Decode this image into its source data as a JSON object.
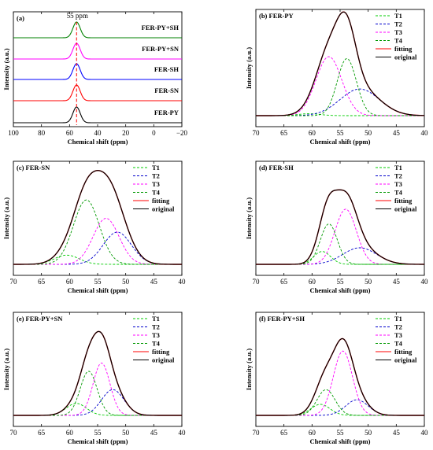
{
  "chart_data": [
    {
      "panel": "(a)",
      "type": "line",
      "xlabel": "Chemical shift (ppm)",
      "ylabel": "Intensity (a.u.)",
      "xlim": [
        100,
        -20
      ],
      "xticks": [
        100,
        80,
        60,
        40,
        20,
        0,
        -20
      ],
      "annotation": "55 ppm",
      "reference_line_x": 55,
      "stacked_series": [
        {
          "name": "FER-PY",
          "color": "#000000",
          "peak_x": 55,
          "width": 2.6
        },
        {
          "name": "FER-SN",
          "color": "#ff0000",
          "peak_x": 55,
          "width": 2.6
        },
        {
          "name": "FER-SH",
          "color": "#0000ff",
          "peak_x": 55,
          "width": 2.6
        },
        {
          "name": "FER-PY+SN",
          "color": "#ff00ff",
          "peak_x": 55,
          "width": 2.6
        },
        {
          "name": "FER-PY+SH",
          "color": "#008000",
          "peak_x": 55,
          "width": 2.6
        }
      ]
    },
    {
      "panel": "(b) FER-PY",
      "type": "line",
      "xlabel": "Chemical shift (ppm)",
      "ylabel": "Intensity (a.u.)",
      "xlim": [
        70,
        40
      ],
      "xticks": [
        70,
        65,
        60,
        55,
        50,
        45,
        40
      ],
      "legend": [
        "T1",
        "T2",
        "T3",
        "T4",
        "fitting",
        "original"
      ],
      "series": [
        {
          "name": "T1",
          "style": "dashed",
          "color": "#00cc00",
          "center": 60.5,
          "height": 0.02,
          "width": 2.0
        },
        {
          "name": "T2",
          "style": "dashed",
          "color": "#0000cc",
          "center": 51.5,
          "height": 0.28,
          "width": 3.5
        },
        {
          "name": "T3",
          "style": "dashed",
          "color": "#ff00ff",
          "center": 57.0,
          "height": 0.62,
          "width": 2.3
        },
        {
          "name": "T4",
          "style": "dashed",
          "color": "#009900",
          "center": 53.8,
          "height": 0.6,
          "width": 1.7
        },
        {
          "name": "fitting",
          "style": "solid",
          "color": "#ff0000",
          "type": "sum"
        },
        {
          "name": "original",
          "style": "solid",
          "color": "#000000",
          "type": "sum"
        }
      ]
    },
    {
      "panel": "(c) FER-SN",
      "type": "line",
      "xlabel": "Chemical shift (ppm)",
      "ylabel": "Intensity (a.u.)",
      "xlim": [
        70,
        40
      ],
      "xticks": [
        70,
        65,
        60,
        55,
        50,
        45,
        40
      ],
      "legend": [
        "T1",
        "T2",
        "T3",
        "T4",
        "fitting",
        "original"
      ],
      "series": [
        {
          "name": "T1",
          "style": "dashed",
          "color": "#00cc00",
          "center": 60.5,
          "height": 0.1,
          "width": 2.2
        },
        {
          "name": "T2",
          "style": "dashed",
          "color": "#0000cc",
          "center": 51.5,
          "height": 0.35,
          "width": 2.5
        },
        {
          "name": "T3",
          "style": "dashed",
          "color": "#ff00ff",
          "center": 53.5,
          "height": 0.5,
          "width": 2.3
        },
        {
          "name": "T4",
          "style": "dashed",
          "color": "#009900",
          "center": 57.0,
          "height": 0.7,
          "width": 2.3
        },
        {
          "name": "fitting",
          "style": "solid",
          "color": "#ff0000",
          "type": "sum"
        },
        {
          "name": "original",
          "style": "solid",
          "color": "#000000",
          "type": "sum"
        }
      ]
    },
    {
      "panel": "(d) FER-SH",
      "type": "line",
      "xlabel": "Chemical shift (ppm)",
      "ylabel": "Intensity (a.u.)",
      "xlim": [
        70,
        40
      ],
      "xticks": [
        70,
        65,
        60,
        55,
        50,
        45,
        40
      ],
      "legend": [
        "T1",
        "T2",
        "T3",
        "T4",
        "fitting",
        "original"
      ],
      "series": [
        {
          "name": "T1",
          "style": "dashed",
          "color": "#00cc00",
          "center": 58.2,
          "height": 0.14,
          "width": 1.5
        },
        {
          "name": "T2",
          "style": "dashed",
          "color": "#0000cc",
          "center": 51.5,
          "height": 0.18,
          "width": 3.0
        },
        {
          "name": "T3",
          "style": "dashed",
          "color": "#ff00ff",
          "center": 54.0,
          "height": 0.6,
          "width": 1.9
        },
        {
          "name": "T4",
          "style": "dashed",
          "color": "#009900",
          "center": 57.0,
          "height": 0.44,
          "width": 1.5
        },
        {
          "name": "fitting",
          "style": "solid",
          "color": "#ff0000",
          "type": "sum"
        },
        {
          "name": "original",
          "style": "solid",
          "color": "#000000",
          "type": "sum"
        }
      ]
    },
    {
      "panel": "(e) FER-PY+SN",
      "type": "line",
      "xlabel": "Chemical shift (ppm)",
      "ylabel": "Intensity (a.u.)",
      "xlim": [
        70,
        40
      ],
      "xticks": [
        70,
        65,
        60,
        55,
        50,
        45,
        40
      ],
      "legend": [
        "T1",
        "T2",
        "T3",
        "T4",
        "fitting",
        "original"
      ],
      "series": [
        {
          "name": "T1",
          "style": "dashed",
          "color": "#00cc00",
          "center": 58.8,
          "height": 0.13,
          "width": 1.8
        },
        {
          "name": "T2",
          "style": "dashed",
          "color": "#0000cc",
          "center": 52.3,
          "height": 0.28,
          "width": 2.0
        },
        {
          "name": "T3",
          "style": "dashed",
          "color": "#ff00ff",
          "center": 54.3,
          "height": 0.57,
          "width": 1.5
        },
        {
          "name": "T4",
          "style": "dashed",
          "color": "#009900",
          "center": 56.6,
          "height": 0.48,
          "width": 1.5
        },
        {
          "name": "fitting",
          "style": "solid",
          "color": "#ff0000",
          "type": "sum"
        },
        {
          "name": "original",
          "style": "solid",
          "color": "#000000",
          "type": "sum"
        }
      ]
    },
    {
      "panel": "(f) FER-PY+SH",
      "type": "line",
      "xlabel": "Chemical shift (ppm)",
      "ylabel": "Intensity (a.u.)",
      "xlim": [
        70,
        40
      ],
      "xticks": [
        70,
        65,
        60,
        55,
        50,
        45,
        40
      ],
      "legend": [
        "T1",
        "T2",
        "T3",
        "T4",
        "fitting",
        "original"
      ],
      "series": [
        {
          "name": "T1",
          "style": "dashed",
          "color": "#00cc00",
          "center": 58.5,
          "height": 0.12,
          "width": 1.7
        },
        {
          "name": "T2",
          "style": "dashed",
          "color": "#0000cc",
          "center": 52.0,
          "height": 0.17,
          "width": 2.0
        },
        {
          "name": "T3",
          "style": "dashed",
          "color": "#ff00ff",
          "center": 54.5,
          "height": 0.7,
          "width": 1.7
        },
        {
          "name": "T4",
          "style": "dashed",
          "color": "#009900",
          "center": 57.5,
          "height": 0.28,
          "width": 1.6
        },
        {
          "name": "fitting",
          "style": "solid",
          "color": "#ff0000",
          "type": "sum"
        },
        {
          "name": "original",
          "style": "solid",
          "color": "#000000",
          "type": "sum"
        }
      ]
    }
  ]
}
